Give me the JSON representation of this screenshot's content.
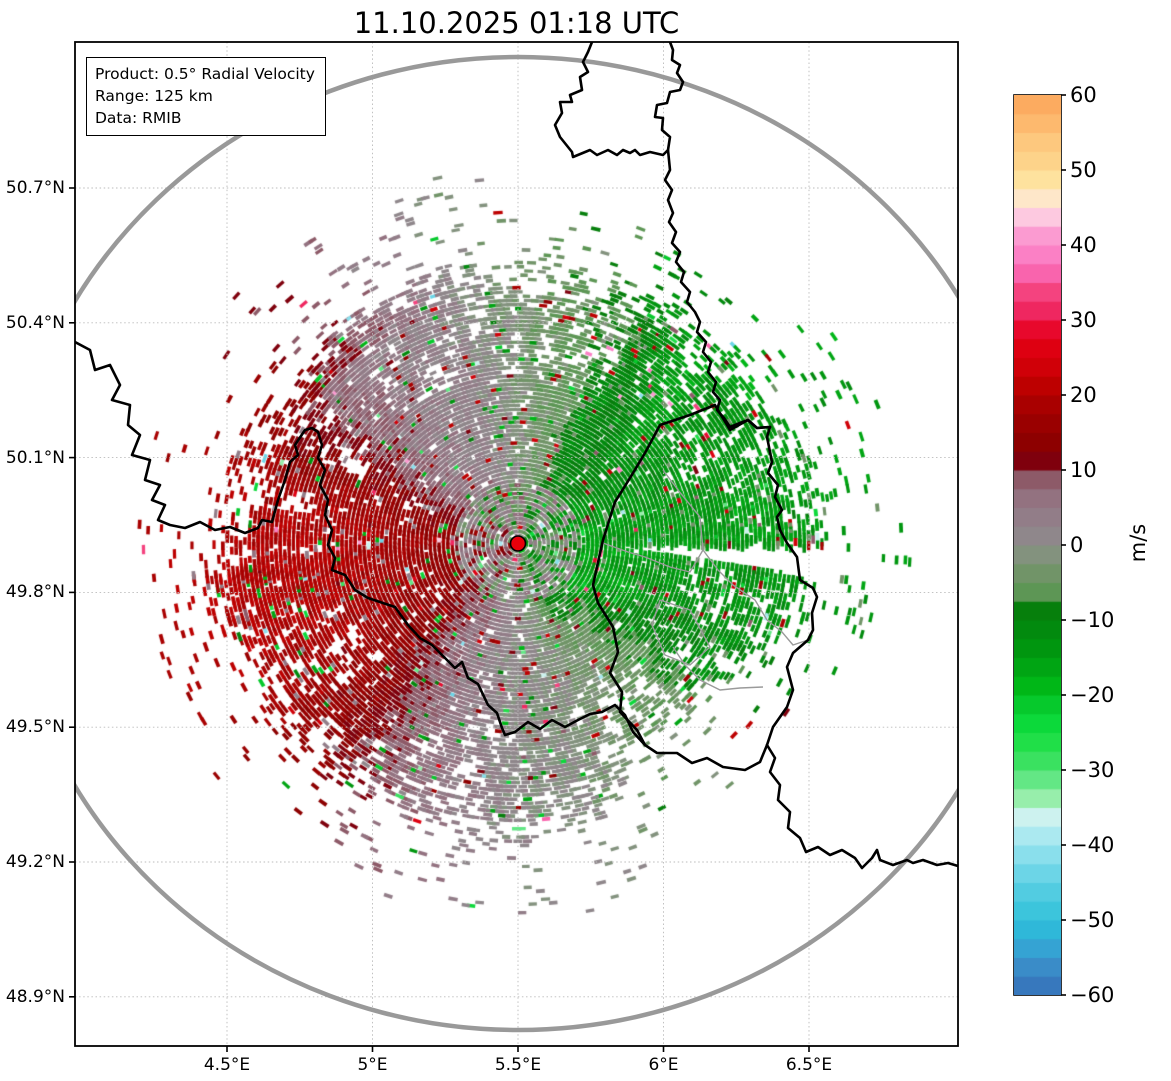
{
  "title": "11.10.2025 01:18 UTC",
  "info_box": {
    "product": "Product: 0.5° Radial Velocity",
    "range": "Range: 125 km",
    "data": "Data: RMIB"
  },
  "axes": {
    "lat_tick_labels": [
      "50.7°N",
      "50.4°N",
      "50.1°N",
      "49.8°N",
      "49.5°N",
      "49.2°N",
      "48.9°N"
    ],
    "lon_tick_labels": [
      "4.5°E",
      "5°E",
      "5.5°E",
      "6°E",
      "6.5°E"
    ]
  },
  "colorbar": {
    "unit_label": "m/s",
    "min": -60,
    "max": 60,
    "tick_labels": [
      "60",
      "50",
      "40",
      "30",
      "20",
      "10",
      "0",
      "−10",
      "−20",
      "−30",
      "−40",
      "−50",
      "−60"
    ],
    "band_step": 2.5,
    "stops": [
      [
        -60,
        "#3778bd"
      ],
      [
        -57.5,
        "#3a8cc8"
      ],
      [
        -55,
        "#35a3d3"
      ],
      [
        -52.5,
        "#2fb8d9"
      ],
      [
        -50,
        "#3cc5dc"
      ],
      [
        -47.5,
        "#52cce1"
      ],
      [
        -45,
        "#6cd5e7"
      ],
      [
        -42.5,
        "#8adfec"
      ],
      [
        -40,
        "#abe9f0"
      ],
      [
        -37.5,
        "#cdf2ef"
      ],
      [
        -35,
        "#97eeab"
      ],
      [
        -32.5,
        "#63e785"
      ],
      [
        -30,
        "#3ae160"
      ],
      [
        -27.5,
        "#20df48"
      ],
      [
        -25,
        "#0cd93a"
      ],
      [
        -22.5,
        "#06c92c"
      ],
      [
        -20,
        "#00b717"
      ],
      [
        -17.5,
        "#00a513"
      ],
      [
        -15,
        "#00960f"
      ],
      [
        -12.5,
        "#028a0e"
      ],
      [
        -10,
        "#067f0c"
      ],
      [
        -7.5,
        "#5d9655"
      ],
      [
        -5,
        "#719468"
      ],
      [
        -2.5,
        "#83927e"
      ],
      [
        0,
        "#8f878b"
      ],
      [
        2.5,
        "#927d88"
      ],
      [
        5,
        "#937280"
      ],
      [
        7.5,
        "#8d5a68"
      ],
      [
        10,
        "#7f000d"
      ],
      [
        12.5,
        "#8d0000"
      ],
      [
        15,
        "#9a0000"
      ],
      [
        17.5,
        "#a90000"
      ],
      [
        20,
        "#bd0000"
      ],
      [
        22.5,
        "#d00008"
      ],
      [
        25,
        "#de0011"
      ],
      [
        27.5,
        "#e8082c"
      ],
      [
        30,
        "#ef2760"
      ],
      [
        32.5,
        "#f4437f"
      ],
      [
        35,
        "#f964ad"
      ],
      [
        37.5,
        "#fb80c5"
      ],
      [
        40,
        "#fb9bd1"
      ],
      [
        42.5,
        "#fdc9e0"
      ],
      [
        45,
        "#fee7c9"
      ],
      [
        47.5,
        "#fee29e"
      ],
      [
        50,
        "#fdd38a"
      ],
      [
        52.5,
        "#fdc87e"
      ],
      [
        55,
        "#fdb96e"
      ],
      [
        57.5,
        "#fcab60"
      ]
    ]
  },
  "map": {
    "range_ring_color": "#999999",
    "country_border_color": "#000000",
    "district_border_color": "#9a9a9a",
    "grid_color": "#bbbbbb",
    "radar_marker_color": "#e8000b",
    "field_pattern": {
      "positive_side": "west lobe, dark red, ~10–22 m/s away from radar",
      "negative_side": "east lobe, green, ~−8–−22 m/s toward radar",
      "zero_band": "gray S-shaped near-zero band running roughly N–S through radar site",
      "south_sector": "wide weak-velocity gray/mauve wedge",
      "texture": "speckled radial bins with ragged white-gapped edges and scattered outlier pixels"
    }
  }
}
